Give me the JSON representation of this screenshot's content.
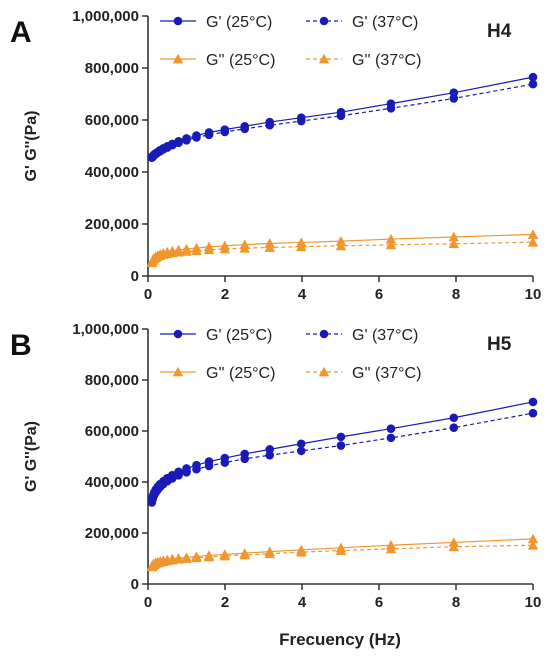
{
  "figure": {
    "xlabel": "Frecuency (Hz)"
  },
  "colors": {
    "blue": "#1a1ab8",
    "orange": "#f0962e"
  },
  "chart_data": [
    {
      "panel_label": "A",
      "title": "H4",
      "type": "line",
      "xlabel": "Frecuency (Hz)",
      "ylabel": "G' G''(Pa)",
      "xlim": [
        0,
        10
      ],
      "ylim": [
        0,
        1000000
      ],
      "xticks": [
        0,
        2,
        4,
        6,
        8,
        10
      ],
      "xtick_labels": [
        "0",
        "2",
        "4",
        "6",
        "8",
        "10"
      ],
      "yticks": [
        0,
        200000,
        400000,
        600000,
        800000,
        1000000
      ],
      "ytick_labels": [
        "0",
        "200,000",
        "400,000",
        "600,000",
        "800,000",
        "1,000,000"
      ],
      "legend": "top, two columns",
      "grid": false,
      "x": [
        0.1,
        0.126,
        0.158,
        0.2,
        0.251,
        0.316,
        0.398,
        0.501,
        0.631,
        0.794,
        1.0,
        1.259,
        1.585,
        1.995,
        2.512,
        3.162,
        3.981,
        5.012,
        6.31,
        7.943,
        10.0
      ],
      "series": [
        {
          "name": "G' (25°C)",
          "color": "blue",
          "marker": "circle",
          "dash": "solid",
          "values": [
            458000,
            462000,
            467000,
            472000,
            477000,
            484000,
            491000,
            499000,
            508000,
            518000,
            529000,
            540000,
            552000,
            563000,
            576000,
            592000,
            609000,
            630000,
            663000,
            705000,
            765000
          ]
        },
        {
          "name": "G' (37°C)",
          "color": "blue",
          "marker": "circle",
          "dash": "dashed",
          "values": [
            455000,
            459000,
            464000,
            469000,
            474000,
            480000,
            487000,
            494000,
            503000,
            512000,
            522000,
            533000,
            543000,
            554000,
            566000,
            580000,
            596000,
            616000,
            645000,
            683000,
            738000
          ]
        },
        {
          "name": "G'' (25°C)",
          "color": "orange",
          "marker": "triangle",
          "dash": "solid",
          "values": [
            52000,
            62000,
            68000,
            74000,
            79000,
            84000,
            88000,
            92000,
            96000,
            100000,
            104000,
            108000,
            112000,
            116000,
            121000,
            125000,
            129000,
            134000,
            142000,
            150000,
            160000
          ]
        },
        {
          "name": "G'' (37°C)",
          "color": "orange",
          "marker": "triangle",
          "dash": "dashed",
          "values": [
            52000,
            60000,
            66000,
            71000,
            75000,
            79000,
            83000,
            86000,
            89000,
            92000,
            95000,
            98000,
            101000,
            104000,
            107000,
            110000,
            113000,
            116000,
            120000,
            124000,
            130000
          ]
        }
      ]
    },
    {
      "panel_label": "B",
      "title": "H5",
      "type": "line",
      "xlabel": "Frecuency (Hz)",
      "ylabel": "G' G''(Pa)",
      "xlim": [
        0,
        10
      ],
      "ylim": [
        0,
        1000000
      ],
      "xticks": [
        0,
        2,
        4,
        6,
        8,
        10
      ],
      "xtick_labels": [
        "0",
        "2",
        "4",
        "6",
        "8",
        "10"
      ],
      "yticks": [
        0,
        200000,
        400000,
        600000,
        800000,
        1000000
      ],
      "ytick_labels": [
        "0",
        "200,000",
        "400,000",
        "600,000",
        "800,000",
        "1,000,000"
      ],
      "legend": "top, two columns",
      "grid": false,
      "x": [
        0.1,
        0.126,
        0.158,
        0.2,
        0.251,
        0.316,
        0.398,
        0.501,
        0.631,
        0.794,
        1.0,
        1.259,
        1.585,
        1.995,
        2.512,
        3.162,
        3.981,
        5.012,
        6.31,
        7.943,
        10.0
      ],
      "series": [
        {
          "name": "G' (25°C)",
          "color": "blue",
          "marker": "circle",
          "dash": "solid",
          "values": [
            330000,
            345000,
            358000,
            370000,
            381000,
            392000,
            403000,
            415000,
            427000,
            440000,
            453000,
            466000,
            480000,
            494000,
            510000,
            528000,
            550000,
            577000,
            609000,
            652000,
            714000
          ]
        },
        {
          "name": "G' (37°C)",
          "color": "blue",
          "marker": "circle",
          "dash": "dashed",
          "values": [
            320000,
            335000,
            348000,
            359000,
            370000,
            381000,
            392000,
            403000,
            414000,
            426000,
            438000,
            450000,
            463000,
            476000,
            491000,
            505000,
            522000,
            543000,
            573000,
            613000,
            670000
          ]
        },
        {
          "name": "G'' (25°C)",
          "color": "orange",
          "marker": "triangle",
          "dash": "solid",
          "values": [
            70000,
            75000,
            79000,
            83000,
            86000,
            89000,
            92000,
            95000,
            98000,
            101000,
            104000,
            108000,
            112000,
            116000,
            121000,
            127000,
            134000,
            142000,
            152000,
            163000,
            177000
          ]
        },
        {
          "name": "G'' (37°C)",
          "color": "orange",
          "marker": "triangle",
          "dash": "dashed",
          "values": [
            68000,
            72000,
            76000,
            79000,
            82000,
            85000,
            88000,
            91000,
            94000,
            97000,
            100000,
            103000,
            106000,
            110000,
            114000,
            119000,
            125000,
            131000,
            138000,
            146000,
            152000
          ]
        }
      ]
    }
  ]
}
